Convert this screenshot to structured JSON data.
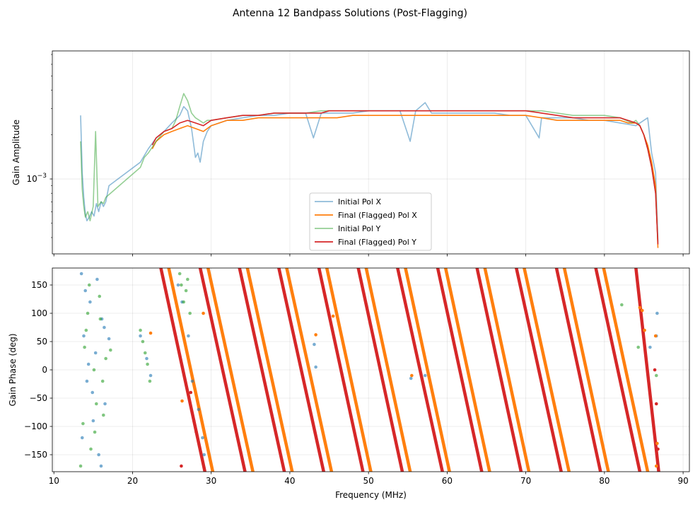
{
  "chart_data": [
    {
      "type": "line",
      "title": "Antenna 12 Bandpass Solutions (Post-Flagging)",
      "xlabel": "",
      "ylabel": "Gain Amplitude",
      "yscale": "log",
      "xlim": [
        9.8,
        90.8
      ],
      "ylim": [
        0.00031,
        0.0074
      ],
      "ytick_labels": [
        "10^-3"
      ],
      "legend": {
        "location": "lower-center",
        "entries": [
          {
            "name": "Initial Pol X",
            "color": "#1f77b4"
          },
          {
            "name": "Final (Flagged) Pol X",
            "color": "#ff7f0e"
          },
          {
            "name": "Initial Pol Y",
            "color": "#2ca02c"
          },
          {
            "name": "Final (Flagged) Pol Y",
            "color": "#d62728"
          }
        ]
      },
      "series": [
        {
          "name": "Initial Pol X",
          "color": "#1f77b4",
          "alpha": 0.5,
          "x": [
            13.4,
            13.6,
            13.8,
            14.0,
            14.2,
            14.5,
            14.8,
            15.1,
            15.4,
            15.7,
            16.0,
            16.3,
            16.6,
            17.0,
            21.0,
            22.0,
            23.0,
            24.0,
            25.0,
            26.0,
            26.5,
            27.0,
            27.5,
            28.0,
            28.3,
            28.6,
            29.0,
            29.5,
            30,
            32,
            34,
            36,
            38,
            40,
            42,
            43,
            44,
            46,
            48,
            50,
            52,
            54,
            55.3,
            56,
            57.2,
            58,
            60,
            62,
            64,
            66,
            68,
            70,
            71.7,
            72,
            74,
            76,
            78,
            80,
            82,
            84,
            85.5,
            86,
            86.5,
            86.8
          ],
          "y": [
            0.0027,
            0.0011,
            0.00075,
            0.00058,
            0.00052,
            0.00055,
            0.0006,
            0.00056,
            0.00068,
            0.0006,
            0.0007,
            0.00065,
            0.0007,
            0.0009,
            0.0013,
            0.0016,
            0.0019,
            0.0021,
            0.0024,
            0.0027,
            0.0031,
            0.0029,
            0.0022,
            0.0014,
            0.0015,
            0.0013,
            0.0018,
            0.0021,
            0.0023,
            0.0025,
            0.0026,
            0.0027,
            0.0027,
            0.0028,
            0.0028,
            0.0019,
            0.0028,
            0.0028,
            0.0028,
            0.0029,
            0.0029,
            0.0029,
            0.0018,
            0.0029,
            0.0033,
            0.0028,
            0.0028,
            0.0028,
            0.0028,
            0.0028,
            0.0027,
            0.0027,
            0.0019,
            0.0026,
            0.0026,
            0.0026,
            0.0025,
            0.0025,
            0.0024,
            0.0023,
            0.0026,
            0.0015,
            0.0011,
            0.00038
          ]
        },
        {
          "name": "Final (Flagged) Pol X",
          "color": "#ff7f0e",
          "alpha": 1.0,
          "x": [
            22.5,
            23,
            24,
            25,
            26,
            27,
            28,
            29,
            30,
            32,
            34,
            36,
            38,
            40,
            42,
            44,
            46,
            48,
            50,
            52,
            54,
            56,
            58,
            60,
            62,
            64,
            66,
            68,
            70,
            72,
            74,
            76,
            78,
            80,
            82,
            83,
            84,
            84.5,
            85,
            85.5,
            86,
            86.5,
            86.8
          ],
          "y": [
            0.0016,
            0.0018,
            0.002,
            0.0021,
            0.0022,
            0.0023,
            0.0022,
            0.0021,
            0.0023,
            0.0025,
            0.0025,
            0.0026,
            0.0026,
            0.0026,
            0.0026,
            0.0026,
            0.0026,
            0.0027,
            0.0027,
            0.0027,
            0.0027,
            0.0027,
            0.0027,
            0.0027,
            0.0027,
            0.0027,
            0.0027,
            0.0027,
            0.0027,
            0.0026,
            0.0025,
            0.0025,
            0.0025,
            0.0025,
            0.0025,
            0.0024,
            0.0024,
            0.0023,
            0.002,
            0.0017,
            0.0013,
            0.0009,
            0.00034
          ]
        },
        {
          "name": "Initial Pol Y",
          "color": "#2ca02c",
          "alpha": 0.5,
          "x": [
            13.4,
            13.6,
            13.8,
            14.0,
            14.3,
            14.6,
            15.0,
            15.3,
            15.6,
            16.0,
            16.3,
            16.6,
            21.0,
            21.5,
            22.0,
            23,
            24,
            25,
            25.5,
            26,
            26.5,
            27,
            27.5,
            28,
            28.5,
            29,
            29.5,
            30,
            32,
            34,
            36,
            38,
            40,
            42,
            44,
            46,
            48,
            50,
            52,
            54,
            56,
            58,
            60,
            62,
            64,
            66,
            68,
            70,
            72,
            74,
            76,
            78,
            80,
            82,
            83.5,
            84,
            84.5,
            85,
            85.5,
            86,
            86.5,
            86.8
          ],
          "y": [
            0.0018,
            0.00085,
            0.00065,
            0.00055,
            0.0006,
            0.00052,
            0.00065,
            0.0021,
            0.00065,
            0.0007,
            0.00068,
            0.00075,
            0.0012,
            0.0014,
            0.0015,
            0.0018,
            0.0021,
            0.0022,
            0.0025,
            0.0031,
            0.0038,
            0.0034,
            0.0028,
            0.0026,
            0.0025,
            0.0024,
            0.0025,
            0.0025,
            0.0026,
            0.0027,
            0.0027,
            0.0028,
            0.0028,
            0.0028,
            0.0029,
            0.0029,
            0.0029,
            0.0029,
            0.0029,
            0.0029,
            0.0029,
            0.0029,
            0.0029,
            0.0029,
            0.0029,
            0.0029,
            0.0029,
            0.0029,
            0.0029,
            0.0028,
            0.0027,
            0.0027,
            0.0027,
            0.0026,
            0.0024,
            0.0025,
            0.0023,
            0.002,
            0.0016,
            0.0012,
            0.0008,
            0.00037
          ]
        },
        {
          "name": "Final (Flagged) Pol Y",
          "color": "#d62728",
          "alpha": 1.0,
          "x": [
            22.5,
            23,
            24,
            25,
            26,
            27,
            28,
            29,
            30,
            32,
            34,
            36,
            38,
            40,
            42,
            44,
            45,
            46,
            48,
            50,
            52,
            54,
            56,
            58,
            60,
            62,
            64,
            66,
            68,
            70,
            72,
            74,
            76,
            78,
            80,
            82,
            83,
            84,
            84.5,
            85,
            85.5,
            86,
            86.5,
            86.8
          ],
          "y": [
            0.0017,
            0.0019,
            0.0021,
            0.0022,
            0.0024,
            0.0025,
            0.0024,
            0.0023,
            0.0025,
            0.0026,
            0.0027,
            0.0027,
            0.0028,
            0.0028,
            0.0028,
            0.0028,
            0.0029,
            0.0029,
            0.0029,
            0.0029,
            0.0029,
            0.0029,
            0.0029,
            0.0029,
            0.0029,
            0.0029,
            0.0029,
            0.0029,
            0.0029,
            0.0029,
            0.0028,
            0.0027,
            0.0026,
            0.0026,
            0.0026,
            0.0026,
            0.0025,
            0.0024,
            0.0023,
            0.002,
            0.0016,
            0.0012,
            0.0008,
            0.00036
          ]
        }
      ]
    },
    {
      "type": "scatter",
      "title": "",
      "xlabel": "Frequency (MHz)",
      "ylabel": "Gain Phase (deg)",
      "xlim": [
        9.8,
        90.8
      ],
      "ylim": [
        -180,
        180
      ],
      "xticks": [
        10,
        20,
        30,
        40,
        50,
        60,
        70,
        80,
        90
      ],
      "yticks": [
        -150,
        -100,
        -50,
        0,
        50,
        100,
        150
      ],
      "wrap_description": "phase wraps from +180 to -180 roughly every 5 MHz between 22 and 87 MHz",
      "series": [
        {
          "name": "Initial Pol X",
          "color": "#1f77b4",
          "alpha": 0.6,
          "x": [
            13.5,
            13.8,
            14.2,
            14.6,
            15.0,
            15.3,
            15.7,
            16.1,
            16.5,
            17.0,
            13.6,
            14.0,
            14.4,
            14.9,
            15.5,
            16.0,
            16.4,
            21.0,
            21.8,
            22.3,
            25.8,
            26.3,
            27.1,
            27.6,
            28.4,
            28.9,
            29.1,
            43.1,
            43.3,
            55.4,
            57.2,
            85.8,
            86.6,
            86.7
          ],
          "y": [
            170,
            60,
            -20,
            120,
            -90,
            30,
            -150,
            90,
            -60,
            55,
            -120,
            140,
            10,
            -40,
            160,
            -170,
            75,
            60,
            20,
            -10,
            150,
            120,
            60,
            -20,
            -70,
            -120,
            -150,
            45,
            5,
            -15,
            -10,
            40,
            60,
            100
          ]
        },
        {
          "name": "Final (Flagged) Pol X",
          "color": "#ff7f0e",
          "alpha": 1.0,
          "x": [
            22.3,
            26.3,
            29.0,
            43.3,
            45.5,
            55.5,
            84.5,
            84.8,
            85.1,
            86.5,
            86.6,
            86.7
          ],
          "y": [
            65,
            -55,
            100,
            62,
            95,
            -10,
            110,
            105,
            70,
            60,
            -170,
            -130
          ],
          "wrap_lines": [
            {
              "x_start": 24.6,
              "x_end": 30.2
            },
            {
              "x_start": 29.6,
              "x_end": 35.3
            },
            {
              "x_start": 34.6,
              "x_end": 40.3
            },
            {
              "x_start": 39.6,
              "x_end": 45.3
            },
            {
              "x_start": 44.7,
              "x_end": 50.3
            },
            {
              "x_start": 49.7,
              "x_end": 55.3
            },
            {
              "x_start": 54.7,
              "x_end": 60.3
            },
            {
              "x_start": 59.8,
              "x_end": 65.4
            },
            {
              "x_start": 64.8,
              "x_end": 70.4
            },
            {
              "x_start": 69.8,
              "x_end": 75.5
            },
            {
              "x_start": 74.9,
              "x_end": 80.5
            },
            {
              "x_start": 79.9,
              "x_end": 85.5
            }
          ]
        },
        {
          "name": "Initial Pol Y",
          "color": "#2ca02c",
          "alpha": 0.6,
          "x": [
            13.4,
            13.9,
            14.3,
            14.7,
            15.1,
            15.4,
            15.8,
            16.2,
            16.6,
            17.2,
            13.7,
            14.1,
            14.5,
            15.2,
            15.9,
            16.3,
            21.0,
            21.3,
            21.6,
            21.9,
            22.2,
            26.0,
            26.2,
            26.5,
            26.8,
            27.0,
            27.3,
            82.2,
            84.3,
            86.6
          ],
          "y": [
            -170,
            40,
            100,
            -140,
            0,
            -60,
            130,
            -20,
            20,
            35,
            -95,
            70,
            150,
            -110,
            90,
            -80,
            70,
            50,
            30,
            10,
            -20,
            170,
            150,
            120,
            140,
            160,
            100,
            115,
            40,
            -10
          ]
        },
        {
          "name": "Final (Flagged) Pol Y",
          "color": "#d62728",
          "alpha": 1.0,
          "x": [
            26.2,
            27.4,
            27.8,
            28.1,
            86.4,
            86.6,
            86.8
          ],
          "y": [
            -170,
            -40,
            -90,
            -110,
            0,
            -60,
            -140
          ],
          "wrap_lines": [
            {
              "x_start": 23.6,
              "x_end": 29.2
            },
            {
              "x_start": 28.6,
              "x_end": 34.3
            },
            {
              "x_start": 33.6,
              "x_end": 39.3
            },
            {
              "x_start": 38.6,
              "x_end": 44.3
            },
            {
              "x_start": 43.7,
              "x_end": 49.3
            },
            {
              "x_start": 48.7,
              "x_end": 54.3
            },
            {
              "x_start": 53.7,
              "x_end": 59.4
            },
            {
              "x_start": 58.8,
              "x_end": 64.4
            },
            {
              "x_start": 63.8,
              "x_end": 69.4
            },
            {
              "x_start": 68.8,
              "x_end": 74.5
            },
            {
              "x_start": 73.9,
              "x_end": 79.5
            },
            {
              "x_start": 78.9,
              "x_end": 84.5
            },
            {
              "x_start": 84.0,
              "x_end": 86.9
            }
          ]
        }
      ]
    }
  ]
}
